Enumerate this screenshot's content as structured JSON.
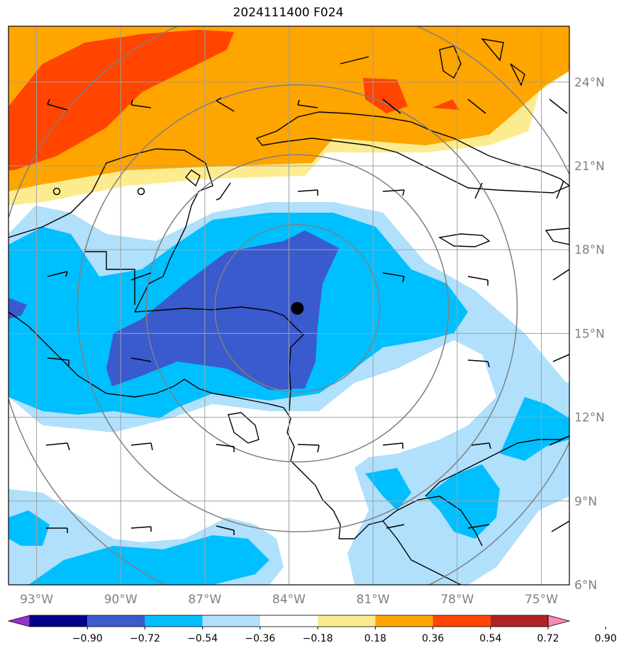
{
  "title": "2024111400 F024",
  "map": {
    "lon_range": [
      -94.0,
      -74.0
    ],
    "lat_range": [
      6.0,
      26.0
    ],
    "lon_ticks": [
      {
        "value": -93,
        "label": "93°W"
      },
      {
        "value": -90,
        "label": "90°W"
      },
      {
        "value": -87,
        "label": "87°W"
      },
      {
        "value": -84,
        "label": "84°W"
      },
      {
        "value": -81,
        "label": "81°W"
      },
      {
        "value": -78,
        "label": "78°W"
      },
      {
        "value": -75,
        "label": "75°W"
      }
    ],
    "lat_ticks": [
      {
        "value": 6,
        "label": "6°N"
      },
      {
        "value": 9,
        "label": "9°N"
      },
      {
        "value": 12,
        "label": "12°N"
      },
      {
        "value": 15,
        "label": "15°N"
      },
      {
        "value": 18,
        "label": "18°N"
      },
      {
        "value": 21,
        "label": "21°N"
      },
      {
        "value": 24,
        "label": "24°N"
      }
    ],
    "storm_center": {
      "lon": -83.7,
      "lat": 15.9
    },
    "range_rings_deg": [
      3,
      5.5,
      8,
      11
    ],
    "gridlines": true
  },
  "colorbar": {
    "levels": [
      "−0.90",
      "−0.72",
      "−0.54",
      "−0.36",
      "−0.18",
      "0.18",
      "0.36",
      "0.54",
      "0.72",
      "0.90"
    ],
    "colors": [
      "#9932cc",
      "#00008b",
      "#3a5bcd",
      "#00bfff",
      "#b0e0fb",
      "#ffffff",
      "#fdec8f",
      "#ffa500",
      "#ff4500",
      "#b22222",
      "#ff88b0"
    ]
  },
  "fill_colors": {
    "dark_blue": "#3a5bcd",
    "cyan": "#00bfff",
    "light_blue": "#b0e0fb",
    "yellow": "#fdec8f",
    "orange": "#ffa500",
    "red_orange": "#ff4500"
  }
}
